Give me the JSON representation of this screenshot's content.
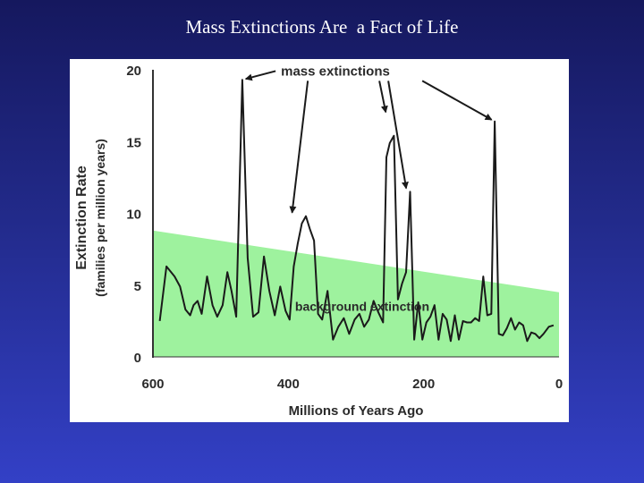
{
  "slide": {
    "title": "Mass Extinctions Are  a Fact of Life"
  },
  "colors": {
    "background_band": "#9ef29e",
    "line": "#1a1a1a",
    "panel": "#ffffff"
  },
  "chart_data": {
    "type": "line",
    "title": "Mass Extinctions Are  a Fact of Life",
    "xlabel": "Millions of Years Ago",
    "ylabel_line1": "Extinction Rate",
    "ylabel_line2": "(families per million years)",
    "xlim": [
      600,
      0
    ],
    "ylim": [
      0,
      20
    ],
    "x_ticks": [
      "600",
      "400",
      "200",
      "0"
    ],
    "y_ticks": [
      "20",
      "15",
      "10",
      "5",
      "0"
    ],
    "x_tick_values": [
      600,
      400,
      200,
      0
    ],
    "y_tick_values": [
      20,
      15,
      10,
      5,
      0
    ],
    "background_band": {
      "label": "background extinction",
      "start": [
        600,
        8.8
      ],
      "end": [
        0,
        4.5
      ]
    },
    "annotation": {
      "label": "mass extinctions",
      "at": [
        395,
        19.6
      ]
    },
    "arrow_targets": [
      [
        468,
        19.3
      ],
      [
        395,
        9.8
      ],
      [
        255,
        16.8
      ],
      [
        225,
        11.5
      ],
      [
        95,
        16.4
      ]
    ],
    "series": [
      {
        "name": "extinction rate",
        "x": [
          590,
          580,
          568,
          560,
          552,
          545,
          540,
          534,
          528,
          520,
          512,
          505,
          497,
          490,
          484,
          477,
          468,
          460,
          452,
          444,
          436,
          428,
          420,
          412,
          404,
          398,
          392,
          386,
          380,
          374,
          368,
          362,
          356,
          350,
          342,
          334,
          326,
          318,
          310,
          302,
          295,
          288,
          281,
          274,
          267,
          260,
          255,
          250,
          244,
          238,
          232,
          226,
          220,
          214,
          208,
          202,
          196,
          190,
          184,
          178,
          172,
          166,
          160,
          154,
          148,
          142,
          136,
          130,
          124,
          118,
          112,
          106,
          100,
          95,
          89,
          83,
          77,
          71,
          65,
          59,
          53,
          47,
          41,
          35,
          29,
          23,
          15,
          8
        ],
        "values": [
          2.5,
          6.3,
          5.6,
          4.9,
          3.3,
          2.9,
          3.6,
          3.9,
          3.0,
          5.6,
          3.6,
          2.8,
          3.6,
          5.9,
          4.6,
          2.8,
          19.3,
          6.9,
          2.8,
          3.1,
          7.0,
          4.6,
          2.9,
          4.9,
          3.2,
          2.6,
          6.3,
          7.9,
          9.3,
          9.8,
          8.9,
          8.1,
          3.0,
          2.6,
          4.6,
          1.2,
          2.1,
          2.7,
          1.6,
          2.6,
          3.0,
          2.1,
          2.6,
          3.9,
          3.1,
          2.4,
          13.9,
          14.9,
          15.4,
          4.0,
          5.1,
          5.9,
          11.5,
          1.2,
          3.8,
          1.2,
          2.4,
          2.8,
          3.6,
          1.2,
          3.0,
          2.6,
          1.1,
          2.9,
          1.2,
          2.5,
          2.4,
          2.4,
          2.7,
          2.5,
          5.6,
          2.9,
          3.0,
          16.4,
          1.6,
          1.5,
          2.0,
          2.7,
          1.9,
          2.4,
          2.2,
          1.1,
          1.7,
          1.6,
          1.3,
          1.6,
          2.1,
          2.2
        ]
      }
    ]
  }
}
